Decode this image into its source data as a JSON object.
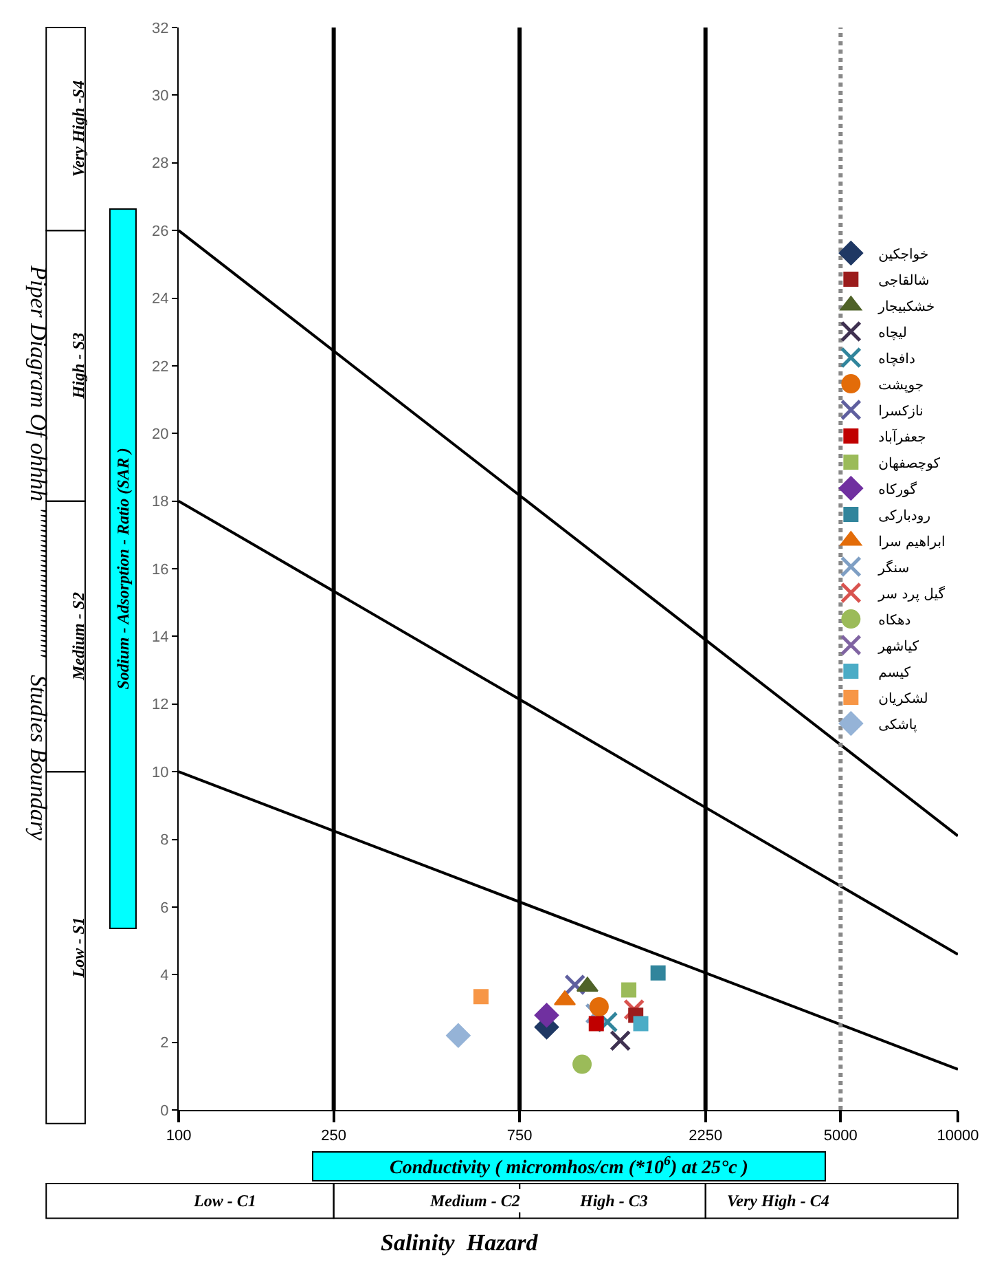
{
  "chart_data": {
    "type": "scatter",
    "xlabel": "Conductivity ( micromhos/cm (*10$^{6}$) at 25°c )",
    "ylabel": "Sodium - Adsorption - Ratio (SAR )",
    "log": "x",
    "xlim": [
      100,
      10000
    ],
    "xticks": [
      100,
      250,
      750,
      2250,
      5000,
      10000
    ],
    "ylim": [
      0,
      32
    ],
    "yticks": [
      0,
      2,
      4,
      6,
      8,
      10,
      12,
      14,
      16,
      18,
      20,
      22,
      24,
      26,
      28,
      30,
      32
    ],
    "legend": "right",
    "ref_lines": [
      {
        "axis": "x",
        "value": 250,
        "color": "#000000",
        "line_style": "solid"
      },
      {
        "axis": "x",
        "value": 750,
        "color": "#000000",
        "line_style": "solid"
      },
      {
        "axis": "x",
        "value": 2250,
        "color": "#000000",
        "line_style": "solid"
      },
      {
        "axis": "x",
        "value": 5000,
        "color": "#888888",
        "line_style": "dotted"
      }
    ],
    "annotations": [
      "Piper Diagram Of ohhhh ''''''''''''''''''''''''''''''   Studies Boundary",
      "Very High -S4",
      "High - S3",
      "Medium - S2",
      "Low - S1",
      "Low - C1",
      "Medium - C2",
      "High - C3",
      "Very High - C4",
      "Salinity  Hazard"
    ],
    "series": [
      {
        "type": "line",
        "color": "#000000",
        "x": [
          100,
          10000
        ],
        "values": [
          26,
          8.1
        ]
      },
      {
        "type": "line",
        "color": "#000000",
        "x": [
          100,
          10000
        ],
        "values": [
          18,
          4.6
        ]
      },
      {
        "type": "line",
        "color": "#000000",
        "x": [
          100,
          10000
        ],
        "values": [
          10,
          1.2
        ]
      },
      {
        "name": "خواجکین",
        "color": "#1f3864",
        "marker": "diamond",
        "x": [
          880
        ],
        "values": [
          2.45
        ]
      },
      {
        "name": "شالقاجی",
        "color": "#9b1c1c",
        "marker": "square",
        "x": [
          1490
        ],
        "values": [
          2.8
        ]
      },
      {
        "name": "خشکبیجار",
        "color": "#4f6228",
        "marker": "triangle",
        "x": [
          1120
        ],
        "values": [
          3.65
        ]
      },
      {
        "name": "لیچاه",
        "color": "#3f3151",
        "marker": "cross",
        "x": [
          1360
        ],
        "values": [
          2.05
        ]
      },
      {
        "name": "دافچاه",
        "color": "#31859c",
        "marker": "cross",
        "x": [
          1260
        ],
        "values": [
          2.6
        ]
      },
      {
        "name": "جوپشت",
        "color": "#e36c09",
        "marker": "circle",
        "x": [
          1200
        ],
        "values": [
          3.05
        ]
      },
      {
        "name": "نازکسرا",
        "color": "#5f5f9f",
        "marker": "cross",
        "x": [
          1040
        ],
        "values": [
          3.7
        ]
      },
      {
        "name": "جعفرآباد",
        "color": "#c00000",
        "marker": "square",
        "x": [
          1180
        ],
        "values": [
          2.55
        ]
      },
      {
        "name": "کوچصفهان",
        "color": "#9bbb59",
        "marker": "square",
        "x": [
          1430
        ],
        "values": [
          3.55
        ]
      },
      {
        "name": "گورکاه",
        "color": "#7030a0",
        "marker": "diamond",
        "x": [
          880
        ],
        "values": [
          2.8
        ]
      },
      {
        "name": "رودبارکی",
        "color": "#31859c",
        "marker": "square",
        "x": [
          1700
        ],
        "values": [
          4.05
        ]
      },
      {
        "name": "ابراهیم سرا",
        "color": "#e36c09",
        "marker": "triangle",
        "x": [
          980
        ],
        "values": [
          3.25
        ]
      },
      {
        "name": "سنگر",
        "color": "#7f9fc4",
        "marker": "cross",
        "x": [
          1175
        ],
        "values": [
          2.85
        ]
      },
      {
        "name": "گیل پرد سر",
        "color": "#d9534f",
        "marker": "cross",
        "x": [
          1475
        ],
        "values": [
          2.97
        ]
      },
      {
        "name": "دهکاه",
        "color": "#9bbb59",
        "marker": "circle",
        "x": [
          1085
        ],
        "values": [
          1.35
        ]
      },
      {
        "name": "کیاشهر",
        "color": "#8064a2",
        "marker": "cross",
        "x": [
          null
        ],
        "values": [
          null
        ]
      },
      {
        "name": "کیسم",
        "color": "#4bacc6",
        "marker": "square",
        "x": [
          1535
        ],
        "values": [
          2.55
        ]
      },
      {
        "name": "لشکریان",
        "color": "#f79646",
        "marker": "square",
        "x": [
          597
        ],
        "values": [
          3.35
        ]
      },
      {
        "name": "پاشکی",
        "color": "#95b3d7",
        "marker": "diamond",
        "x": [
          522
        ],
        "values": [
          2.2
        ]
      }
    ]
  }
}
